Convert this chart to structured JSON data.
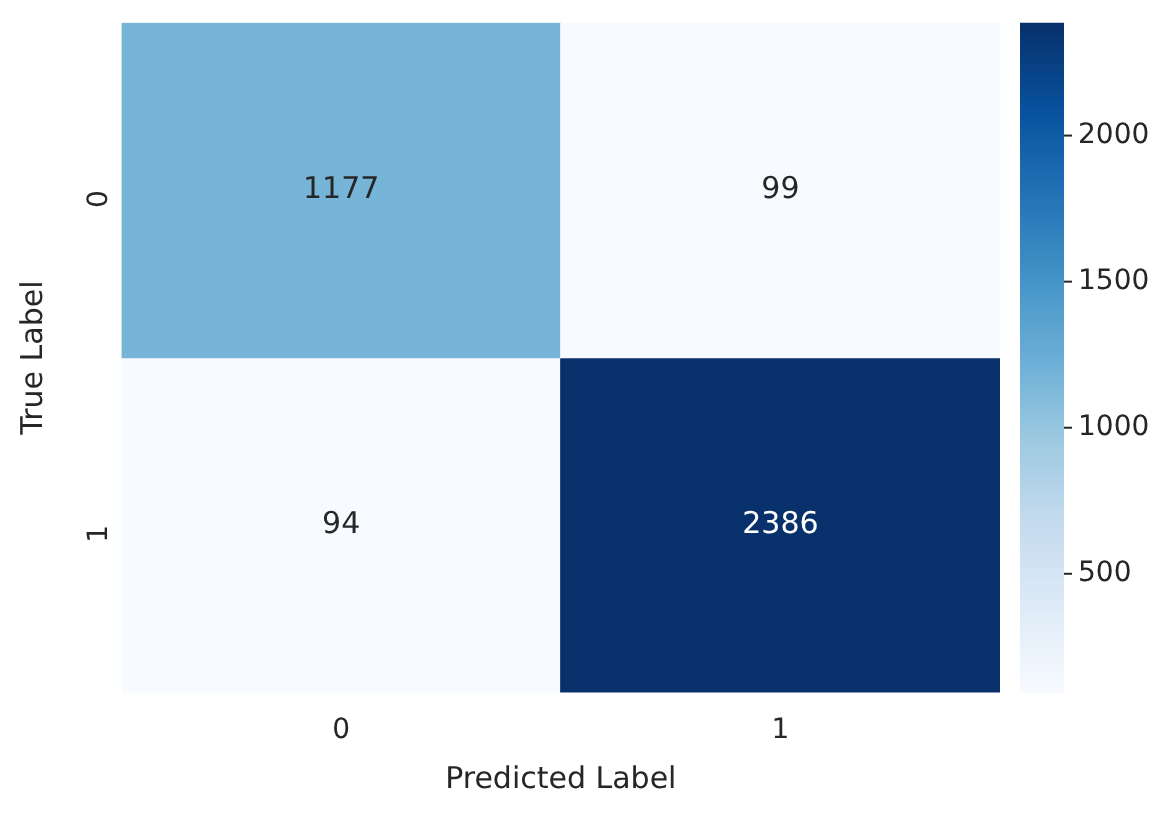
{
  "chart_data": {
    "type": "heatmap",
    "xlabel": "Predicted Label",
    "ylabel": "True Label",
    "categories": [
      "0",
      "1"
    ],
    "y_categories": [
      "0",
      "1"
    ],
    "cells": [
      [
        1177,
        99
      ],
      [
        94,
        2386
      ]
    ],
    "clim": [
      94,
      2386
    ],
    "cticks": [
      500,
      1000,
      1500,
      2000
    ],
    "data_labels": true
  }
}
